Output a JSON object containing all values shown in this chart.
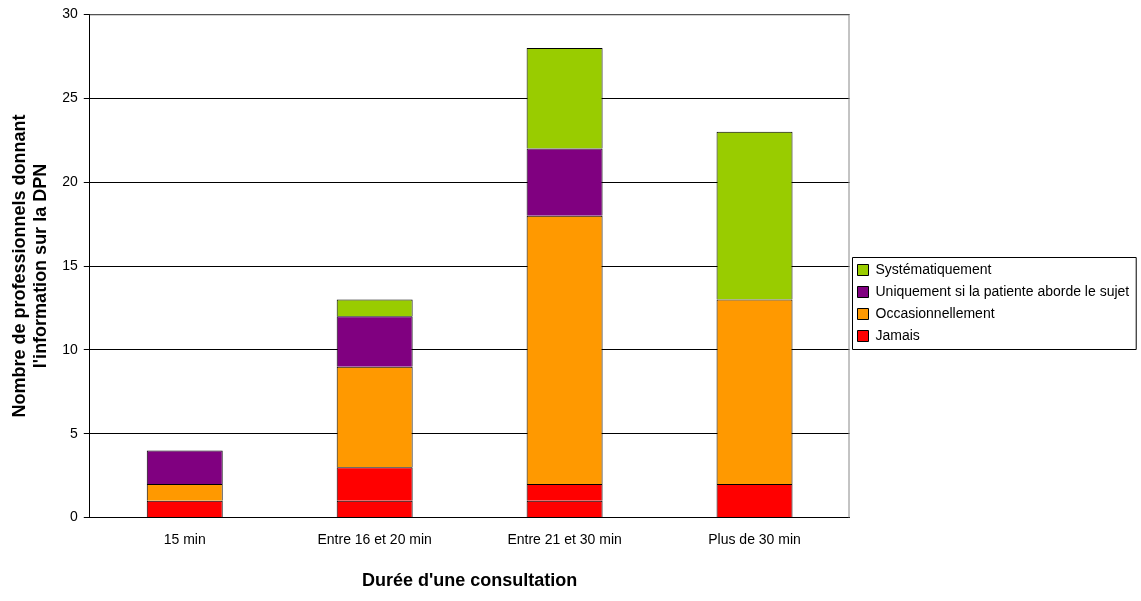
{
  "chart_data": {
    "type": "bar",
    "stacked": true,
    "xlabel": "Durée d'une consultation",
    "ylabel": "Nombre de professionnels donnant l'information sur la DPN",
    "categories": [
      "15 min",
      "Entre 16 et 20 min",
      "Entre 21 et 30 min",
      "Plus de 30 min"
    ],
    "series": [
      {
        "color": "#ff0000",
        "values": [
          1,
          1,
          1,
          0
        ]
      },
      {
        "name": "Jamais",
        "color": "#ff0000",
        "values": [
          0,
          2,
          1,
          2
        ]
      },
      {
        "name": "Occasionnellement",
        "color": "#ff9900",
        "values": [
          1,
          6,
          16,
          11
        ]
      },
      {
        "name": "Uniquement si la patiente aborde le sujet",
        "color": "#800080",
        "values": [
          2,
          3,
          4,
          0
        ]
      },
      {
        "name": "Systématiquement",
        "color": "#99cc00",
        "values": [
          0,
          1,
          6,
          10
        ]
      }
    ],
    "ylim": [
      0,
      30
    ],
    "yticks": [
      0,
      5,
      10,
      15,
      20,
      25,
      30
    ],
    "grid": "y",
    "legend": "right"
  }
}
